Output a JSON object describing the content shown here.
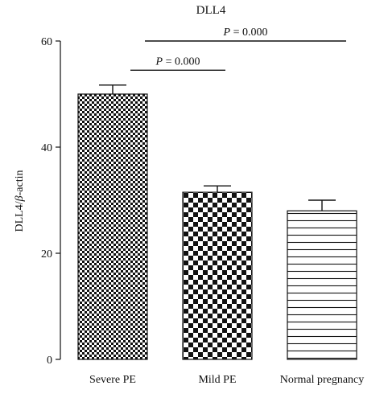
{
  "chart_data": {
    "type": "bar",
    "title": "DLL4",
    "ylabel_main": "DLL4/",
    "ylabel_greek": "β",
    "ylabel_rest": "-actin",
    "categories": [
      "Severe PE",
      "Mild PE",
      "Normal pregnancy"
    ],
    "values": [
      50,
      31.5,
      28
    ],
    "errors": [
      1.7,
      1.2,
      2.0
    ],
    "patterns": [
      "checker-fine",
      "checker-coarse",
      "horizontal-lines"
    ],
    "ylim": [
      0,
      60
    ],
    "yticks": [
      "0",
      "20",
      "40",
      "60"
    ],
    "significance": [
      {
        "from": 0,
        "to": 1,
        "y": 54.5,
        "p_symbol": "P",
        "p_value": "= 0.000"
      },
      {
        "from": 0,
        "to": 2,
        "y": 60,
        "p_symbol": "P",
        "p_value": "= 0.000"
      }
    ]
  }
}
